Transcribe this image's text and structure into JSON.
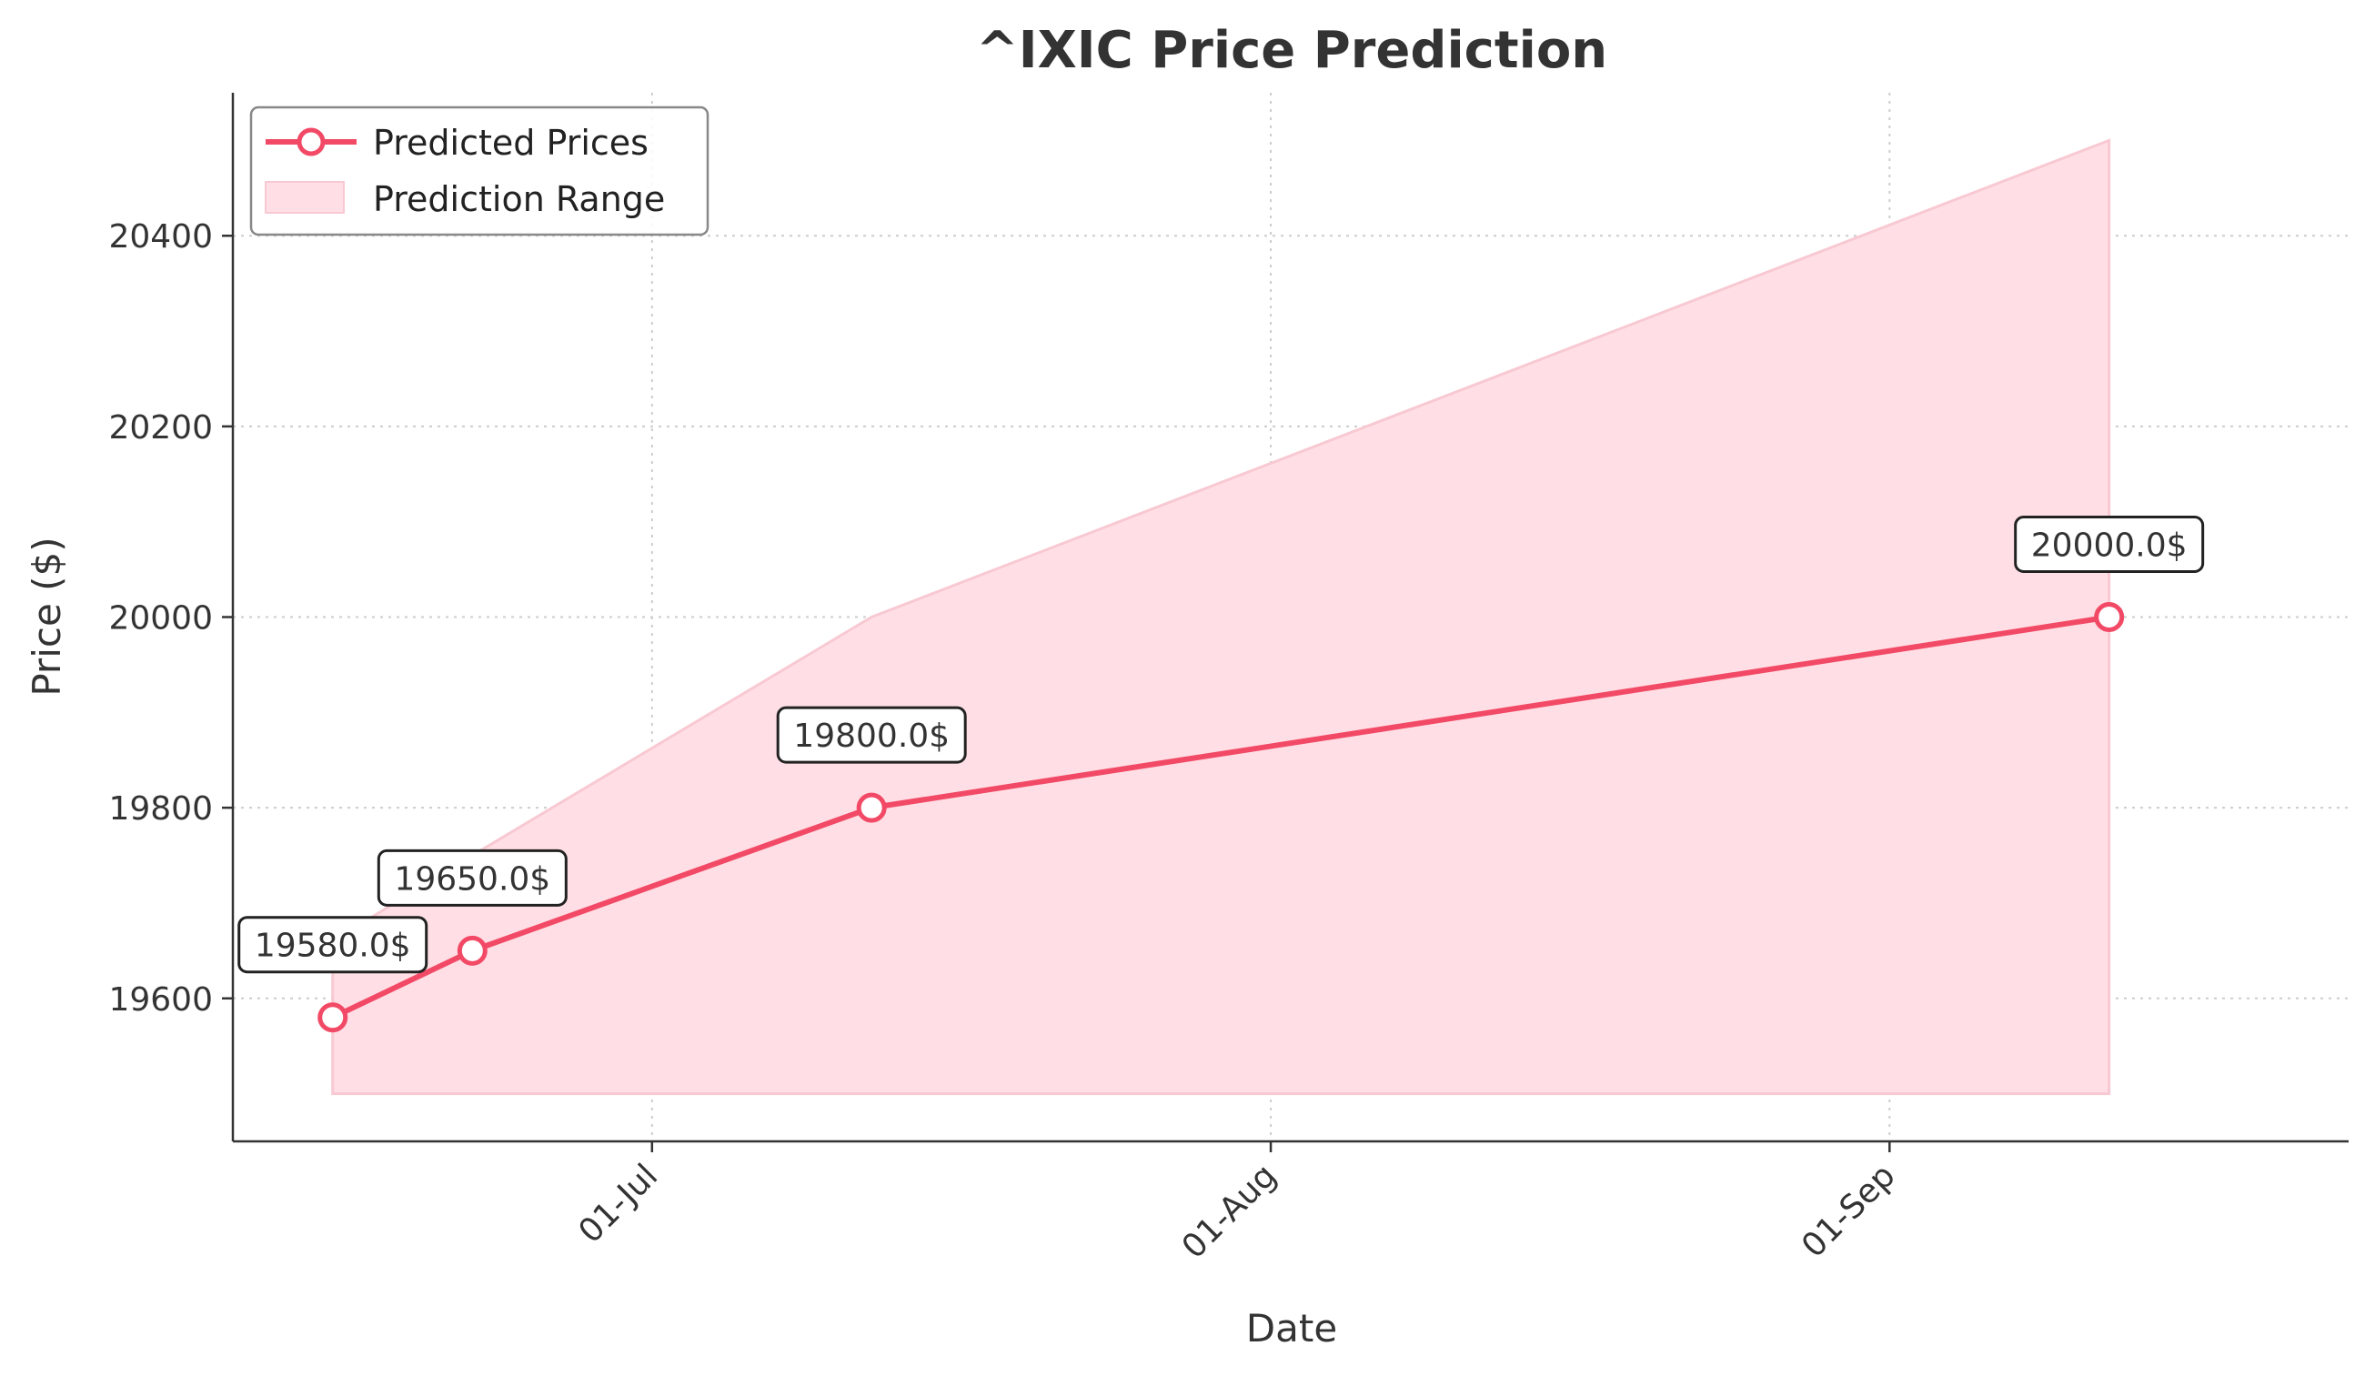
{
  "chart_data": {
    "type": "line",
    "title": "^IXIC Price Prediction",
    "xlabel": "Date",
    "ylabel": "Price ($)",
    "x_axis_type": "date",
    "xlim": [
      "2024-06-10",
      "2024-09-24"
    ],
    "ylim": [
      19450,
      20550
    ],
    "x_ticks": [
      {
        "date": "2024-07-01",
        "label": "01-Jul"
      },
      {
        "date": "2024-08-01",
        "label": "01-Aug"
      },
      {
        "date": "2024-09-01",
        "label": "01-Sep"
      }
    ],
    "y_ticks": [
      19600,
      19800,
      20000,
      20200,
      20400
    ],
    "grid": true,
    "legend_position": "top-left",
    "series": [
      {
        "name": "Predicted Prices",
        "type": "line",
        "color": "#f24a66",
        "marker": "open-circle",
        "points": [
          {
            "date": "2024-06-15",
            "value": 19580.0,
            "label": "19580.0$"
          },
          {
            "date": "2024-06-22",
            "value": 19650.0,
            "label": "19650.0$"
          },
          {
            "date": "2024-07-12",
            "value": 19800.0,
            "label": "19800.0$"
          },
          {
            "date": "2024-09-12",
            "value": 20000.0,
            "label": "20000.0$"
          }
        ]
      },
      {
        "name": "Prediction Range",
        "type": "area",
        "color": "#ffdfe5",
        "edge_color": "#f8c9d2",
        "points": [
          {
            "date": "2024-06-15",
            "low": 19500,
            "high": 19660
          },
          {
            "date": "2024-06-22",
            "low": 19500,
            "high": 19750
          },
          {
            "date": "2024-07-12",
            "low": 19500,
            "high": 20000
          },
          {
            "date": "2024-09-12",
            "low": 19500,
            "high": 20500
          }
        ]
      }
    ]
  }
}
